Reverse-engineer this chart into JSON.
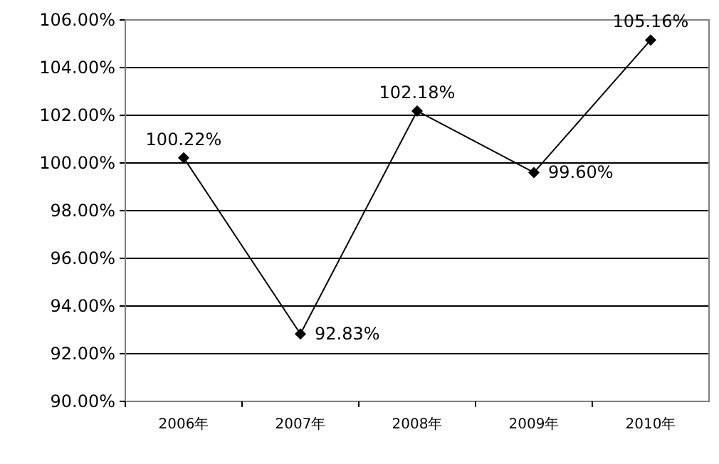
{
  "chart_data": {
    "type": "line",
    "categories": [
      "2006年",
      "2007年",
      "2008年",
      "2009年",
      "2010年"
    ],
    "series": [
      {
        "color": "#000000",
        "values": [
          100.22,
          92.83,
          102.18,
          99.6,
          105.16
        ],
        "value_labels": [
          "100.22%",
          "92.83%",
          "102.18%",
          "99.60%",
          "105.16%"
        ]
      }
    ],
    "ylim": [
      90,
      106
    ],
    "yticks": [
      {
        "value": 90,
        "label": "90.00%"
      },
      {
        "value": 92,
        "label": "92.00%"
      },
      {
        "value": 94,
        "label": "94.00%"
      },
      {
        "value": 96,
        "label": "96.00%"
      },
      {
        "value": 98,
        "label": "98.00%"
      },
      {
        "value": 100,
        "label": "100.00%"
      },
      {
        "value": 102,
        "label": "102.00%"
      },
      {
        "value": 104,
        "label": "104.00%"
      },
      {
        "value": 106,
        "label": "106.00%"
      }
    ],
    "grid": "y",
    "marker": "diamond",
    "line_style": "solid"
  }
}
